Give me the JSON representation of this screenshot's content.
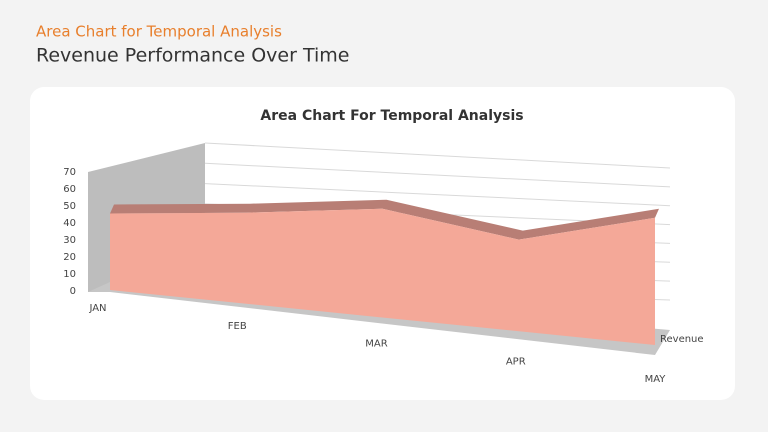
{
  "header": {
    "kicker": "Area Chart for Temporal Analysis",
    "title": "Revenue Performance Over Time"
  },
  "chart_data": {
    "type": "area3d",
    "title": "Area Chart For Temporal Analysis",
    "categories": [
      "JAN",
      "FEB",
      "MAR",
      "APR",
      "MAY"
    ],
    "series": [
      {
        "name": "Revenue",
        "color": "#f4a898",
        "values": [
          45,
          47,
          50,
          38,
          48
        ]
      }
    ],
    "ylim": [
      0,
      70
    ],
    "yticks": [
      0,
      10,
      20,
      30,
      40,
      50,
      60,
      70
    ],
    "grid": true
  }
}
